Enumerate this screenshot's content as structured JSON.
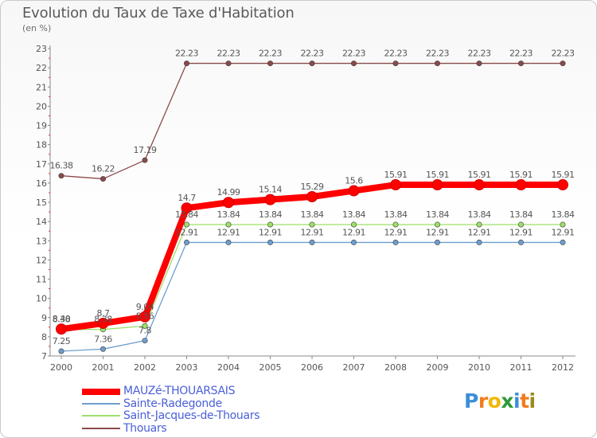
{
  "header": {
    "title": "Evolution du Taux de Taxe d'Habitation",
    "subtitle": "(en %)"
  },
  "chart_data": {
    "type": "line",
    "x": [
      "2000",
      "2001",
      "2002",
      "2003",
      "2004",
      "2005",
      "2006",
      "2007",
      "2008",
      "2009",
      "2010",
      "2011",
      "2012"
    ],
    "ylim": [
      7,
      23
    ],
    "yticks": [
      "7",
      "8",
      "9",
      "10",
      "11",
      "12",
      "13",
      "14",
      "15",
      "16",
      "17",
      "18",
      "19",
      "20",
      "21",
      "22",
      "23"
    ],
    "grid": false,
    "legend_position": "bottom-left",
    "series": [
      {
        "name": "MAUZé-THOUARSAIS",
        "color": "#ff0000",
        "values": [
          8.4,
          8.7,
          9.04,
          14.7,
          14.99,
          15.14,
          15.29,
          15.6,
          15.91,
          15.91,
          15.91,
          15.91,
          15.91
        ],
        "labels": [
          "8.40",
          "8.7",
          "9.04",
          "14.7",
          "14.99",
          "15.14",
          "15.29",
          "15.6",
          "15.91",
          "15.91",
          "15.91",
          "15.91",
          "15.91"
        ]
      },
      {
        "name": "Sainte-Radegonde",
        "color": "#6e9ecf",
        "values": [
          7.25,
          7.36,
          7.8,
          12.91,
          12.91,
          12.91,
          12.91,
          12.91,
          12.91,
          12.91,
          12.91,
          12.91,
          12.91
        ],
        "labels": [
          "7.25",
          "7.36",
          "7.8",
          "12.91",
          "12.91",
          "12.91",
          "12.91",
          "12.91",
          "12.91",
          "12.91",
          "12.91",
          "12.91",
          "12.91"
        ]
      },
      {
        "name": "Saint-Jacques-de-Thouars",
        "color": "#9ee06a",
        "values": [
          8.38,
          8.38,
          8.56,
          13.84,
          13.84,
          13.84,
          13.84,
          13.84,
          13.84,
          13.84,
          13.84,
          13.84,
          13.84
        ],
        "labels": [
          "8.38",
          "8.38",
          "8.56",
          "13.84",
          "13.84",
          "13.84",
          "13.84",
          "13.84",
          "13.84",
          "13.84",
          "13.84",
          "13.84",
          "13.84"
        ]
      },
      {
        "name": "Thouars",
        "color": "#8b4a4a",
        "values": [
          16.38,
          16.22,
          17.19,
          22.23,
          22.23,
          22.23,
          22.23,
          22.23,
          22.23,
          22.23,
          22.23,
          22.23,
          22.23
        ],
        "labels": [
          "16.38",
          "16.22",
          "17.19",
          "22.23",
          "22.23",
          "22.23",
          "22.23",
          "22.23",
          "22.23",
          "22.23",
          "22.23",
          "22.23",
          "22.23"
        ]
      }
    ]
  },
  "legend": [
    {
      "label": "MAUZé-THOUARSAIS",
      "color": "#ff0000"
    },
    {
      "label": "Sainte-Radegonde",
      "color": "#6e9ecf"
    },
    {
      "label": "Saint-Jacques-de-Thouars",
      "color": "#9ee06a"
    },
    {
      "label": "Thouars",
      "color": "#8b4a4a"
    }
  ],
  "logo": {
    "letters": [
      "P",
      "r",
      "o",
      "x",
      "i",
      "t",
      "i"
    ],
    "colors": [
      "#3b8ed8",
      "#f07d1e",
      "#f2b705",
      "#2e9a3a",
      "#3b8ed8",
      "#f07d1e",
      "#9a8a1a"
    ]
  }
}
